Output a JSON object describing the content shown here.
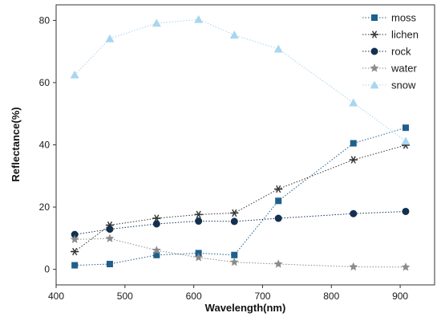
{
  "chart_data": {
    "type": "scatter",
    "title": "",
    "xlabel": "Wavelength(nm)",
    "ylabel": "Reflectance(%)",
    "xlim": [
      400,
      950
    ],
    "ylim": [
      -5,
      85
    ],
    "xticks": [
      400,
      500,
      600,
      700,
      800,
      900
    ],
    "yticks": [
      0,
      20,
      40,
      60,
      80
    ],
    "x_tick_labels": [
      "400",
      "500",
      "600",
      "700",
      "800",
      "900"
    ],
    "y_tick_labels": [
      "0",
      "20",
      "40",
      "60",
      "80"
    ],
    "grid": false,
    "legend_position": "top-right",
    "x": [
      427,
      478,
      546,
      607,
      659,
      723,
      832,
      908
    ],
    "series": [
      {
        "name": "moss",
        "marker": "square",
        "color": "#1f5f8b",
        "line": "dotted",
        "values": [
          1.3,
          1.7,
          4.6,
          5.2,
          4.6,
          22.0,
          40.5,
          45.5
        ]
      },
      {
        "name": "lichen",
        "marker": "asterisk",
        "color": "#333333",
        "line": "dotted",
        "values": [
          5.7,
          14.2,
          16.4,
          17.6,
          18.1,
          25.8,
          35.2,
          39.9
        ]
      },
      {
        "name": "rock",
        "marker": "circle",
        "color": "#14304f",
        "line": "dotted",
        "values": [
          11.2,
          12.9,
          14.6,
          15.5,
          15.4,
          16.4,
          17.9,
          18.6
        ]
      },
      {
        "name": "water",
        "marker": "star",
        "color": "#8c8c8c",
        "line": "dotted",
        "values": [
          9.6,
          9.9,
          6.1,
          3.8,
          2.3,
          1.7,
          0.8,
          0.7
        ]
      },
      {
        "name": "snow",
        "marker": "triangle",
        "color": "#a9d6ef",
        "line": "dotted",
        "values": [
          62.5,
          74.1,
          79.1,
          80.3,
          75.3,
          70.8,
          53.5,
          41.2
        ]
      }
    ]
  }
}
